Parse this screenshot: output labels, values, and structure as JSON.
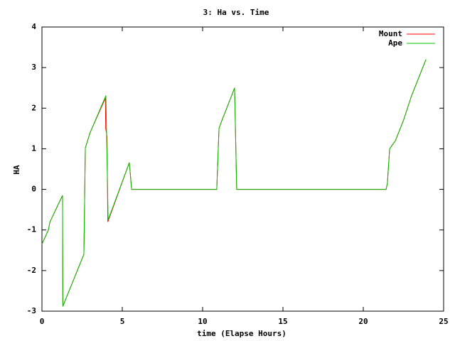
{
  "chart_data": {
    "type": "line",
    "title": "3: Ha vs. Time",
    "x_label": "time (Elapse Hours)",
    "y_label": "HA",
    "xlim": [
      0,
      25
    ],
    "xticks": [
      0,
      5,
      10,
      15,
      20,
      25
    ],
    "ylim": [
      -3,
      4
    ],
    "yticks": [
      -3,
      -2,
      -1,
      0,
      1,
      2,
      3,
      4
    ],
    "legend": "upper right",
    "series": [
      {
        "name": "Mount",
        "color": "#ff0000",
        "x": [
          0,
          0.4,
          0.5,
          1.28,
          1.3,
          2.61,
          2.7,
          3.0,
          3.95,
          3.97,
          4.05,
          4.1,
          5.44,
          5.58,
          10.88,
          11.02,
          11.2,
          11.5,
          11.99,
          12.12,
          21.42,
          21.5,
          21.64,
          22,
          22.5,
          23,
          23.9
        ],
        "values": [
          -1.35,
          -1.0,
          -0.8,
          -0.15,
          -2.88,
          -1.6,
          1.02,
          1.4,
          2.25,
          1.5,
          1.3,
          -0.8,
          0.66,
          0,
          0,
          1.5,
          1.7,
          2.0,
          2.5,
          0,
          0,
          0.15,
          1.0,
          1.2,
          1.7,
          2.3,
          3.2
        ]
      },
      {
        "name": "Ape",
        "color": "#00c000",
        "x": [
          0,
          0.4,
          0.5,
          1.28,
          1.3,
          2.61,
          2.7,
          3.0,
          3.98,
          4.12,
          5.44,
          5.58,
          10.88,
          11.02,
          11.2,
          11.5,
          11.99,
          12.12,
          21.42,
          21.5,
          21.64,
          22,
          22.5,
          23,
          23.9
        ],
        "values": [
          -1.35,
          -1.0,
          -0.8,
          -0.15,
          -2.88,
          -1.6,
          1.02,
          1.4,
          2.31,
          -0.75,
          0.66,
          0,
          0,
          1.5,
          1.7,
          2.0,
          2.5,
          0,
          0,
          0.15,
          1.0,
          1.2,
          1.7,
          2.3,
          3.2
        ]
      }
    ]
  }
}
